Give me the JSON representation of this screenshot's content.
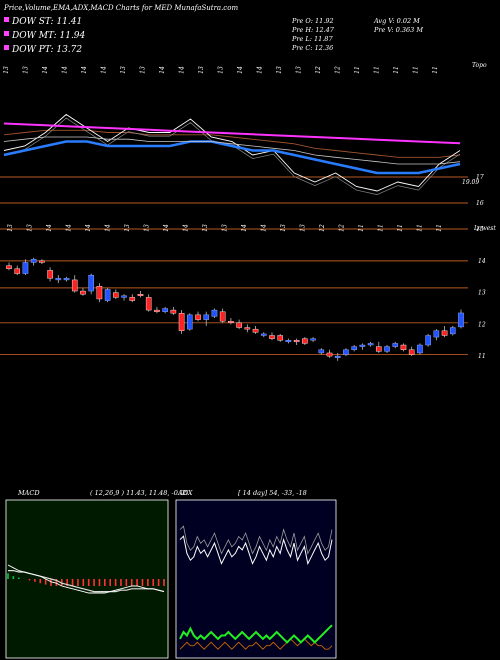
{
  "header": {
    "title": "Price,Volume,EMA,ADX,MACD Charts for MED",
    "site": "MunafaSutra.com",
    "dow_st": "DOW ST: 11.41",
    "dow_mt": "DOW MT: 11.94",
    "dow_pt": "DOW PT: 13.72",
    "prev_o": "Pre   O: 11.92",
    "prev_h": "Pre   H: 12.47",
    "prev_l": "Pre   L: 11.87",
    "prev_c": "Pre   C: 12.36",
    "avg_v": "Avg V: 0.02  M",
    "prev_v": "Pre   V: 0.363 M"
  },
  "colors": {
    "st": "#ff44ff",
    "mt": "#ff44ff",
    "pt": "#ff44ff",
    "up": "#2255ff",
    "down": "#ff2222",
    "level": "#b85a20",
    "ema_long": "#ff33ff",
    "ema_mid": "#2a7cff"
  },
  "chart_data": [
    {
      "type": "line",
      "name": "ema-panel",
      "corner_label": "Topo",
      "last_value_label": "19.09",
      "y_tick_labels": [
        "17",
        "16",
        "15"
      ],
      "date_labels": [
        "13",
        "13",
        "14",
        "14",
        "14",
        "14",
        "13",
        "13",
        "14",
        "14",
        "13",
        "13",
        "14",
        "14",
        "13",
        "13",
        "12",
        "12",
        "11",
        "11",
        "11",
        "11",
        "11"
      ],
      "series": [
        {
          "values": [
            17.1,
            17.2,
            17.5,
            17.9,
            17.6,
            17.3,
            17.6,
            17.5,
            17.5,
            17.8,
            17.4,
            17.3,
            17.0,
            17.1,
            16.6,
            16.4,
            16.6,
            16.3,
            16.2,
            16.4,
            16.3,
            16.8,
            17.1
          ]
        },
        {
          "values": [
            17.0,
            17.1,
            17.2,
            17.3,
            17.3,
            17.2,
            17.2,
            17.2,
            17.2,
            17.3,
            17.3,
            17.2,
            17.1,
            17.1,
            17.0,
            16.9,
            16.8,
            16.7,
            16.6,
            16.6,
            16.6,
            16.7,
            16.8
          ]
        },
        {
          "values": [
            17.3,
            17.35,
            17.4,
            17.4,
            17.4,
            17.35,
            17.35,
            17.3,
            17.3,
            17.3,
            17.3,
            17.25,
            17.2,
            17.15,
            17.1,
            17.0,
            16.95,
            16.9,
            16.85,
            16.8,
            16.8,
            16.8,
            16.85
          ]
        },
        {
          "values": [
            17.7,
            17.68,
            17.66,
            17.64,
            17.62,
            17.6,
            17.58,
            17.56,
            17.54,
            17.52,
            17.5,
            17.48,
            17.46,
            17.44,
            17.42,
            17.4,
            17.38,
            17.36,
            17.34,
            17.32,
            17.3,
            17.28,
            17.26
          ]
        }
      ]
    },
    {
      "type": "candlestick",
      "name": "price-panel",
      "corner_label": "Lowest",
      "y_tick_labels": [
        "14",
        "13",
        "12",
        "11"
      ],
      "date_labels": [
        "13",
        "13",
        "14",
        "14",
        "14",
        "14",
        "13",
        "13",
        "14",
        "14",
        "13",
        "13",
        "14",
        "14",
        "13",
        "13",
        "12",
        "12",
        "11",
        "11",
        "11",
        "11",
        "11"
      ],
      "ohlc": [
        [
          13.85,
          13.95,
          13.7,
          13.75
        ],
        [
          13.75,
          13.85,
          13.55,
          13.6
        ],
        [
          13.6,
          14.05,
          13.55,
          13.95
        ],
        [
          13.95,
          14.1,
          13.85,
          14.05
        ],
        [
          14.0,
          14.05,
          13.9,
          13.95
        ],
        [
          13.7,
          13.8,
          13.35,
          13.45
        ],
        [
          13.4,
          13.55,
          13.3,
          13.45
        ],
        [
          13.4,
          13.5,
          13.35,
          13.45
        ],
        [
          13.4,
          13.55,
          13.0,
          13.05
        ],
        [
          13.05,
          13.15,
          12.9,
          12.95
        ],
        [
          13.05,
          13.6,
          12.95,
          13.55
        ],
        [
          13.2,
          13.3,
          12.7,
          12.8
        ],
        [
          12.75,
          13.15,
          12.7,
          13.1
        ],
        [
          13.0,
          13.1,
          12.8,
          12.85
        ],
        [
          12.85,
          12.95,
          12.75,
          12.9
        ],
        [
          12.85,
          12.95,
          12.7,
          12.75
        ],
        [
          12.95,
          13.05,
          12.85,
          12.9
        ],
        [
          12.85,
          12.95,
          12.4,
          12.45
        ],
        [
          12.45,
          12.55,
          12.35,
          12.4
        ],
        [
          12.4,
          12.55,
          12.35,
          12.5
        ],
        [
          12.45,
          12.55,
          12.3,
          12.35
        ],
        [
          12.35,
          12.45,
          11.7,
          11.8
        ],
        [
          11.85,
          12.35,
          11.8,
          12.3
        ],
        [
          12.3,
          12.4,
          12.1,
          12.15
        ],
        [
          12.15,
          12.4,
          11.95,
          12.3
        ],
        [
          12.25,
          12.5,
          12.2,
          12.45
        ],
        [
          12.4,
          12.5,
          12.05,
          12.1
        ],
        [
          12.1,
          12.2,
          12.0,
          12.05
        ],
        [
          12.05,
          12.15,
          11.85,
          11.9
        ],
        [
          11.9,
          12.0,
          11.75,
          11.85
        ],
        [
          11.85,
          11.95,
          11.7,
          11.75
        ],
        [
          11.65,
          11.75,
          11.6,
          11.7
        ],
        [
          11.65,
          11.75,
          11.5,
          11.55
        ],
        [
          11.65,
          11.7,
          11.45,
          11.5
        ],
        [
          11.45,
          11.55,
          11.4,
          11.5
        ],
        [
          11.5,
          11.55,
          11.35,
          11.45
        ],
        [
          11.55,
          11.6,
          11.35,
          11.4
        ],
        [
          11.5,
          11.6,
          11.45,
          11.55
        ],
        [
          11.1,
          11.25,
          11.05,
          11.2
        ],
        [
          11.1,
          11.2,
          10.95,
          11.0
        ],
        [
          10.95,
          11.1,
          10.85,
          11.0
        ],
        [
          11.05,
          11.25,
          11.0,
          11.2
        ],
        [
          11.2,
          11.35,
          11.15,
          11.3
        ],
        [
          11.3,
          11.4,
          11.2,
          11.35
        ],
        [
          11.35,
          11.45,
          11.3,
          11.4
        ],
        [
          11.3,
          11.45,
          11.1,
          11.15
        ],
        [
          11.15,
          11.35,
          11.1,
          11.3
        ],
        [
          11.3,
          11.45,
          11.25,
          11.4
        ],
        [
          11.35,
          11.4,
          11.15,
          11.2
        ],
        [
          11.2,
          11.3,
          11.0,
          11.05
        ],
        [
          11.1,
          11.4,
          11.05,
          11.35
        ],
        [
          11.35,
          11.7,
          11.3,
          11.65
        ],
        [
          11.6,
          11.85,
          11.5,
          11.8
        ],
        [
          11.8,
          11.95,
          11.6,
          11.65
        ],
        [
          11.7,
          11.95,
          11.65,
          11.9
        ],
        [
          11.92,
          12.47,
          11.87,
          12.36
        ]
      ],
      "levels": [
        14.0,
        13.15,
        12.05,
        11.05
      ]
    },
    {
      "type": "histogram",
      "name": "macd-panel",
      "label": "MACD",
      "params": "( 12,26,9 ) 11.43, 11.48, -0.05",
      "macd": [
        0.1,
        0.08,
        0.06,
        0.05,
        0.04,
        0.03,
        0.02,
        0.0,
        -0.02,
        -0.03,
        -0.05,
        -0.06,
        -0.07,
        -0.08,
        -0.09,
        -0.1,
        -0.1,
        -0.1,
        -0.1,
        -0.09,
        -0.08,
        -0.07,
        -0.06,
        -0.05,
        -0.05,
        -0.06,
        -0.07,
        -0.07,
        -0.08,
        -0.09
      ],
      "signal": [
        0.06,
        0.06,
        0.05,
        0.05,
        0.04,
        0.03,
        0.02,
        0.01,
        0.0,
        -0.01,
        -0.03,
        -0.04,
        -0.05,
        -0.06,
        -0.07,
        -0.08,
        -0.09,
        -0.09,
        -0.09,
        -0.09,
        -0.09,
        -0.08,
        -0.08,
        -0.07,
        -0.07,
        -0.07,
        -0.07,
        -0.07,
        -0.08,
        -0.09
      ],
      "histogram": [
        0.04,
        0.02,
        0.01,
        0.0,
        -0.01,
        -0.02,
        -0.03,
        -0.04,
        -0.05,
        -0.05,
        -0.05,
        -0.05,
        -0.05,
        -0.05,
        -0.05,
        -0.05,
        -0.05,
        -0.05,
        -0.05,
        -0.05,
        -0.05,
        -0.05,
        -0.05,
        -0.05,
        -0.05,
        -0.05,
        -0.05,
        -0.05,
        -0.05,
        -0.05
      ]
    },
    {
      "type": "line",
      "name": "adx-panel",
      "label": "ADX",
      "params": "[ 14  day] 54, -33, -18",
      "adx": [
        34,
        35,
        30,
        28,
        29,
        32,
        30,
        31,
        29,
        31,
        33,
        30,
        27,
        29,
        31,
        29,
        30,
        32,
        31,
        33,
        30,
        27,
        29,
        32,
        30,
        28,
        31,
        29,
        32,
        30,
        34,
        31,
        29,
        33,
        28,
        30,
        32,
        27,
        29,
        31,
        33,
        30,
        28,
        29,
        34
      ],
      "plus_di": [
        5,
        7,
        6,
        8,
        6,
        5,
        6,
        5,
        6,
        7,
        6,
        5,
        6,
        6,
        7,
        6,
        5,
        6,
        7,
        6,
        5,
        6,
        7,
        6,
        5,
        6,
        5,
        6,
        7,
        6,
        5,
        4,
        5,
        6,
        5,
        4,
        5,
        6,
        5,
        4,
        5,
        6,
        7,
        8,
        9
      ],
      "minus_di": [
        2,
        3,
        4,
        3,
        3,
        4,
        3,
        2,
        3,
        4,
        3,
        2,
        3,
        4,
        3,
        2,
        3,
        4,
        3,
        2,
        3,
        3,
        4,
        3,
        2,
        3,
        3,
        4,
        3,
        2,
        3,
        4,
        5,
        4,
        3,
        4,
        5,
        4,
        3,
        4,
        3,
        3,
        2,
        2,
        3
      ]
    }
  ]
}
